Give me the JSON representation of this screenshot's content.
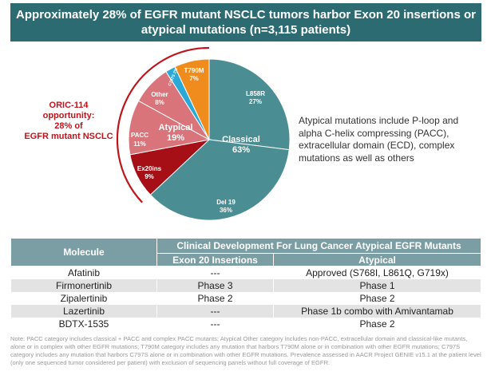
{
  "header": {
    "line1": "Approximately 28% of EGFR mutant NSCLC tumors harbor Exon 20 insertions or",
    "line2": "atypical mutations (n=3,115 patients)"
  },
  "chart_data": {
    "type": "pie",
    "slices": [
      {
        "label": "L858R",
        "pct": "27%",
        "value": 27,
        "color": "#4a8d93"
      },
      {
        "label": "Del 19",
        "pct": "36%",
        "value": 36,
        "color": "#4a8d93"
      },
      {
        "label": "Ex20ins",
        "pct": "9%",
        "value": 9,
        "color": "#a50f15"
      },
      {
        "label": "PACC",
        "pct": "11%",
        "value": 11,
        "color": "#d9757a"
      },
      {
        "label": "Other",
        "pct": "8%",
        "value": 8,
        "color": "#d9757a"
      },
      {
        "label": "C797S 2%",
        "pct": "",
        "value": 2,
        "color": "#2aa9d6"
      },
      {
        "label": "T790M",
        "pct": "7%",
        "value": 7,
        "color": "#f08c1e"
      }
    ],
    "group_labels": {
      "classical_name": "Classical",
      "classical_pct": "63%",
      "atypical_name": "Atypical",
      "atypical_pct": "19%"
    },
    "bracket_color": "#c0141c"
  },
  "opportunity": {
    "line1": "ORIC-114",
    "line2": "opportunity:",
    "line3": "28% of",
    "line4": "EGFR mutant NSCLC"
  },
  "callout": "Atypical mutations include P-loop and alpha C-helix compressing (PACC), extracellular domain (ECD), complex mutations as well as others",
  "table": {
    "col_molecule": "Molecule",
    "group_header": "Clinical Development For Lung Cancer Atypical EGFR Mutants",
    "col_exon20": "Exon 20 Insertions",
    "col_atypical": "Atypical",
    "rows": [
      {
        "molecule": "Afatinib",
        "exon20": "---",
        "atypical": "Approved (S768I, L861Q, G719x)"
      },
      {
        "molecule": "Firmonertinib",
        "exon20": "Phase 3",
        "atypical": "Phase 1"
      },
      {
        "molecule": "Zipalertinib",
        "exon20": "Phase 2",
        "atypical": "Phase 2"
      },
      {
        "molecule": "Lazertinib",
        "exon20": "---",
        "atypical": "Phase 1b combo with Amivantamab"
      },
      {
        "molecule": "BDTX-1535",
        "exon20": "---",
        "atypical": "Phase 2"
      }
    ]
  },
  "note": "Note: PACC category includes classical + PACC and complex PACC mutants; Atypical Other category includes non-PACC, extracellular domain and classical-like mutants, alone or in complex with other EGFR mutations; T790M category includes any mutation that harbors T790M alone or in combination with other EGFR mutations; C797S category includes any mutation that harbors C797S alone or in combination with other EGFR mutations. Prevalence assessed in AACR Project GENIE v15.1 at the patient level (only one sequenced tumor considered per patient) with exclusion of sequencing panels without full coverage of EGFR."
}
